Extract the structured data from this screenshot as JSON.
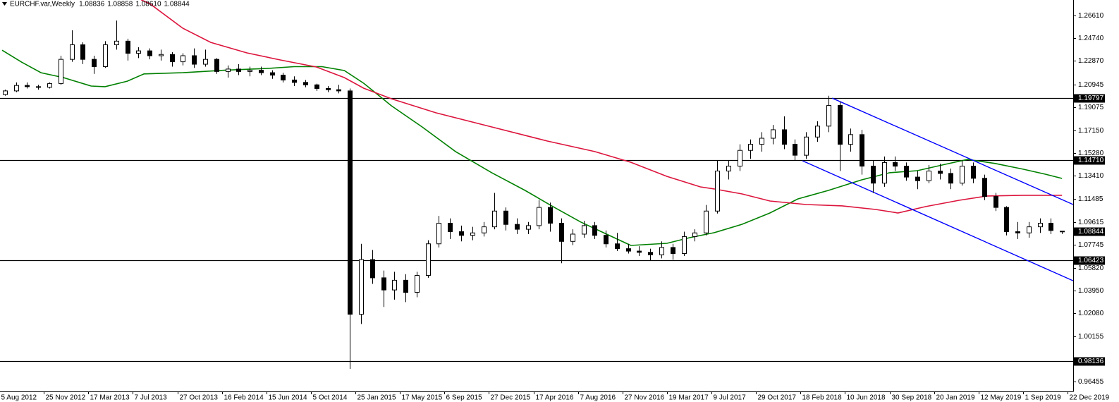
{
  "chart_data": {
    "type": "candlestick",
    "title": "EURCHF.var,Weekly",
    "header_values": [
      "1.08836",
      "1.08858",
      "1.08610",
      "1.08844"
    ],
    "up_color": "#ffffff",
    "down_color": "#000000",
    "wick_color": "#000000",
    "xlim": [
      0.25,
      386.0
    ],
    "ylim": [
      0.9564,
      1.2789
    ],
    "xticks": [
      {
        "value": 0,
        "label": "5 Aug 2012"
      },
      {
        "value": 16,
        "label": "25 Nov 2012"
      },
      {
        "value": 32,
        "label": "17 Mar 2013"
      },
      {
        "value": 48,
        "label": "7 Jul 2013"
      },
      {
        "value": 64,
        "label": "27 Oct 2013"
      },
      {
        "value": 80,
        "label": "16 Feb 2014"
      },
      {
        "value": 96,
        "label": "15 Jun 2014"
      },
      {
        "value": 112,
        "label": "5 Oct 2014"
      },
      {
        "value": 128,
        "label": "25 Jan 2015"
      },
      {
        "value": 144,
        "label": "17 May 2015"
      },
      {
        "value": 160,
        "label": "6 Sep 2015"
      },
      {
        "value": 176,
        "label": "27 Dec 2015"
      },
      {
        "value": 192,
        "label": "17 Apr 2016"
      },
      {
        "value": 208,
        "label": "7 Aug 2016"
      },
      {
        "value": 224,
        "label": "27 Nov 2016"
      },
      {
        "value": 240,
        "label": "19 Mar 2017"
      },
      {
        "value": 256,
        "label": "9 Jul 2017"
      },
      {
        "value": 272,
        "label": "29 Oct 2017"
      },
      {
        "value": 288,
        "label": "18 Feb 2018"
      },
      {
        "value": 304,
        "label": "10 Jun 2018"
      },
      {
        "value": 320,
        "label": "30 Sep 2018"
      },
      {
        "value": 336,
        "label": "20 Jan 2019"
      },
      {
        "value": 352,
        "label": "12 May 2019"
      },
      {
        "value": 368,
        "label": "1 Sep 2019"
      },
      {
        "value": 384,
        "label": "22 Dec 2019"
      }
    ],
    "yticks": [
      {
        "value": 1.2661,
        "label": "1.26610"
      },
      {
        "value": 1.2474,
        "label": "1.24740"
      },
      {
        "value": 1.2287,
        "label": "1.22870"
      },
      1.20945,
      1.19075,
      {
        "value": 1.1715,
        "label": "1.17150"
      },
      {
        "value": 1.1528,
        "label": "1.15280"
      },
      {
        "value": 1.1341,
        "label": "1.13410"
      },
      1.11485,
      1.09615,
      1.07745,
      {
        "value": 1.0582,
        "label": "1.05820"
      },
      {
        "value": 1.0395,
        "label": "1.03950"
      },
      {
        "value": 1.0208,
        "label": "1.02080"
      },
      1.00155,
      0.96455
    ],
    "hlines": [
      {
        "value": 1.19797,
        "label": "1.19797"
      },
      {
        "value": 1.1471,
        "label": "1.14710"
      },
      {
        "value": 1.06423,
        "label": "1.06423"
      },
      {
        "value": 0.98136,
        "label": "0.98136"
      }
    ],
    "hline_color": "#000000",
    "x": [
      2,
      6,
      10,
      14,
      18,
      22,
      26,
      30,
      34,
      38,
      42,
      46,
      50,
      54,
      58,
      62,
      66,
      70,
      74,
      78,
      82,
      86,
      90,
      94,
      98,
      102,
      106,
      110,
      114,
      118,
      122,
      126,
      130,
      134,
      138,
      142,
      146,
      150,
      154,
      158,
      162,
      166,
      170,
      174,
      178,
      182,
      186,
      190,
      194,
      198,
      202,
      206,
      210,
      214,
      218,
      222,
      226,
      230,
      234,
      238,
      242,
      246,
      250,
      254,
      258,
      262,
      266,
      270,
      274,
      278,
      282,
      286,
      290,
      294,
      298,
      302,
      306,
      310,
      314,
      318,
      322,
      326,
      330,
      334,
      338,
      342,
      346,
      350,
      354,
      358,
      362,
      366,
      370,
      374,
      378,
      382
    ],
    "candles": [
      [
        1.201,
        1.205,
        1.2,
        1.204
      ],
      [
        1.204,
        1.211,
        1.203,
        1.2085
      ],
      [
        1.2085,
        1.211,
        1.206,
        1.2075
      ],
      [
        1.2075,
        1.209,
        1.205,
        1.207
      ],
      [
        1.207,
        1.211,
        1.206,
        1.21
      ],
      [
        1.21,
        1.233,
        1.209,
        1.23
      ],
      [
        1.23,
        1.254,
        1.228,
        1.242
      ],
      [
        1.242,
        1.244,
        1.226,
        1.23
      ],
      [
        1.23,
        1.233,
        1.218,
        1.224
      ],
      [
        1.224,
        1.245,
        1.223,
        1.242
      ],
      [
        1.242,
        1.262,
        1.238,
        1.245
      ],
      [
        1.245,
        1.247,
        1.229,
        1.235
      ],
      [
        1.235,
        1.24,
        1.231,
        1.237
      ],
      [
        1.237,
        1.239,
        1.23,
        1.233
      ],
      [
        1.233,
        1.238,
        1.229,
        1.234
      ],
      [
        1.234,
        1.236,
        1.224,
        1.228
      ],
      [
        1.228,
        1.235,
        1.225,
        1.233
      ],
      [
        1.233,
        1.239,
        1.223,
        1.226
      ],
      [
        1.226,
        1.238,
        1.224,
        1.23
      ],
      [
        1.23,
        1.231,
        1.218,
        1.22
      ],
      [
        1.22,
        1.225,
        1.215,
        1.222
      ],
      [
        1.222,
        1.226,
        1.217,
        1.22
      ],
      [
        1.22,
        1.224,
        1.216,
        1.221
      ],
      [
        1.221,
        1.224,
        1.217,
        1.219
      ],
      [
        1.219,
        1.221,
        1.214,
        1.217
      ],
      [
        1.217,
        1.219,
        1.211,
        1.213
      ],
      [
        1.213,
        1.216,
        1.208,
        1.211
      ],
      [
        1.211,
        1.213,
        1.207,
        1.209
      ],
      [
        1.209,
        1.21,
        1.204,
        1.206
      ],
      [
        1.206,
        1.208,
        1.203,
        1.205
      ],
      [
        1.205,
        1.209,
        1.202,
        1.204
      ],
      [
        1.204,
        1.206,
        0.975,
        1.02
      ],
      [
        1.02,
        1.078,
        1.012,
        1.065
      ],
      [
        1.065,
        1.073,
        1.045,
        1.05
      ],
      [
        1.05,
        1.056,
        1.026,
        1.04
      ],
      [
        1.04,
        1.055,
        1.032,
        1.048
      ],
      [
        1.048,
        1.053,
        1.03,
        1.038
      ],
      [
        1.038,
        1.055,
        1.034,
        1.052
      ],
      [
        1.052,
        1.081,
        1.05,
        1.078
      ],
      [
        1.078,
        1.101,
        1.075,
        1.095
      ],
      [
        1.095,
        1.099,
        1.082,
        1.088
      ],
      [
        1.088,
        1.093,
        1.08,
        1.085
      ],
      [
        1.085,
        1.092,
        1.081,
        1.087
      ],
      [
        1.087,
        1.096,
        1.084,
        1.092
      ],
      [
        1.092,
        1.12,
        1.09,
        1.105
      ],
      [
        1.105,
        1.108,
        1.089,
        1.094
      ],
      [
        1.094,
        1.099,
        1.086,
        1.09
      ],
      [
        1.09,
        1.096,
        1.086,
        1.093
      ],
      [
        1.093,
        1.114,
        1.09,
        1.108
      ],
      [
        1.108,
        1.112,
        1.088,
        1.095
      ],
      [
        1.095,
        1.099,
        1.062,
        1.08
      ],
      [
        1.08,
        1.09,
        1.077,
        1.086
      ],
      [
        1.086,
        1.097,
        1.083,
        1.093
      ],
      [
        1.093,
        1.096,
        1.082,
        1.085
      ],
      [
        1.085,
        1.089,
        1.075,
        1.078
      ],
      [
        1.078,
        1.087,
        1.072,
        1.074
      ],
      [
        1.074,
        1.078,
        1.07,
        1.072
      ],
      [
        1.072,
        1.076,
        1.068,
        1.071
      ],
      [
        1.071,
        1.074,
        1.064,
        1.069
      ],
      [
        1.069,
        1.08,
        1.066,
        1.075
      ],
      [
        1.075,
        1.078,
        1.065,
        1.07
      ],
      [
        1.07,
        1.088,
        1.068,
        1.084
      ],
      [
        1.084,
        1.09,
        1.08,
        1.087
      ],
      [
        1.087,
        1.11,
        1.085,
        1.105
      ],
      [
        1.105,
        1.147,
        1.103,
        1.138
      ],
      [
        1.138,
        1.147,
        1.131,
        1.142
      ],
      [
        1.142,
        1.16,
        1.138,
        1.155
      ],
      [
        1.155,
        1.164,
        1.148,
        1.16
      ],
      [
        1.16,
        1.17,
        1.154,
        1.165
      ],
      [
        1.165,
        1.176,
        1.16,
        1.172
      ],
      [
        1.172,
        1.183,
        1.156,
        1.16
      ],
      [
        1.16,
        1.164,
        1.147,
        1.151
      ],
      [
        1.151,
        1.17,
        1.148,
        1.166
      ],
      [
        1.166,
        1.179,
        1.162,
        1.175
      ],
      [
        1.175,
        1.2,
        1.17,
        1.192
      ],
      [
        1.192,
        1.195,
        1.138,
        1.16
      ],
      [
        1.16,
        1.173,
        1.154,
        1.168
      ],
      [
        1.168,
        1.172,
        1.135,
        1.142
      ],
      [
        1.142,
        1.147,
        1.12,
        1.128
      ],
      [
        1.128,
        1.15,
        1.125,
        1.145
      ],
      [
        1.145,
        1.15,
        1.138,
        1.142
      ],
      [
        1.142,
        1.145,
        1.13,
        1.133
      ],
      [
        1.133,
        1.138,
        1.123,
        1.13
      ],
      [
        1.13,
        1.143,
        1.128,
        1.138
      ],
      [
        1.138,
        1.144,
        1.131,
        1.136
      ],
      [
        1.136,
        1.14,
        1.123,
        1.128
      ],
      [
        1.128,
        1.147,
        1.126,
        1.142
      ],
      [
        1.142,
        1.145,
        1.128,
        1.132
      ],
      [
        1.132,
        1.135,
        1.114,
        1.117
      ],
      [
        1.117,
        1.12,
        1.105,
        1.108
      ],
      [
        1.108,
        1.109,
        1.085,
        1.088
      ],
      [
        1.088,
        1.096,
        1.082,
        1.087
      ],
      [
        1.087,
        1.096,
        1.083,
        1.092
      ],
      [
        1.092,
        1.099,
        1.087,
        1.095
      ],
      [
        1.095,
        1.099,
        1.086,
        1.089
      ],
      [
        1.08836,
        1.08858,
        1.0861,
        1.08844
      ]
    ],
    "moving_averages": [
      {
        "color": "#008000",
        "x": [
          1,
          8,
          15,
          23,
          33,
          38,
          46,
          52,
          66,
          81,
          96,
          106,
          116,
          124,
          131,
          141,
          152,
          164,
          177,
          189,
          199,
          209,
          220,
          227,
          240,
          248,
          257,
          267,
          277,
          287,
          298,
          310,
          320,
          330,
          340,
          348,
          358,
          368,
          376,
          382
        ],
        "values": [
          1.2375,
          1.2277,
          1.219,
          1.215,
          1.208,
          1.2075,
          1.212,
          1.218,
          1.219,
          1.221,
          1.2225,
          1.224,
          1.224,
          1.2208,
          1.2103,
          1.1917,
          1.1743,
          1.154,
          1.1366,
          1.122,
          1.1087,
          1.096,
          1.0842,
          1.0767,
          1.0784,
          1.083,
          1.0872,
          1.0941,
          1.1034,
          1.115,
          1.122,
          1.1307,
          1.1366,
          1.1383,
          1.1435,
          1.1475,
          1.1442,
          1.1395,
          1.1354,
          1.1319
        ]
      },
      {
        "color": "#dc143c",
        "x": [
          51,
          54,
          66,
          76,
          89,
          101,
          114,
          124,
          131,
          141,
          157,
          177,
          197,
          214,
          227,
          240,
          252,
          257,
          267,
          277,
          290,
          303,
          315,
          323,
          333,
          345,
          355,
          368,
          382
        ],
        "values": [
          1.279,
          1.276,
          1.2556,
          1.244,
          1.2353,
          1.2295,
          1.2237,
          1.215,
          1.2062,
          1.1975,
          1.1859,
          1.1743,
          1.1627,
          1.154,
          1.1452,
          1.1336,
          1.1249,
          1.1232,
          1.1191,
          1.1133,
          1.1104,
          1.1093,
          1.1063,
          1.1034,
          1.1087,
          1.1139,
          1.1174,
          1.118,
          1.118
        ]
      }
    ],
    "trendlines": [
      {
        "color": "#0000ff",
        "x": [
          299.4,
          386
        ],
        "values": [
          1.198,
          1.1104
        ]
      },
      {
        "color": "#0000ff",
        "x": [
          288.7,
          386
        ],
        "values": [
          1.1464,
          1.0476
        ]
      }
    ]
  }
}
